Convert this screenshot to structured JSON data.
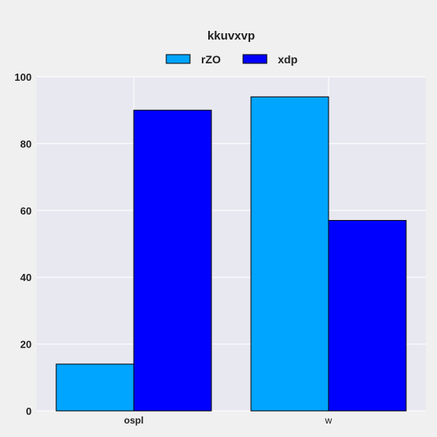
{
  "chart_data": {
    "type": "bar",
    "title": "kkuvxvp",
    "categories": [
      "ospl",
      "w"
    ],
    "series": [
      {
        "name": "rZO",
        "values": [
          14,
          94
        ]
      },
      {
        "name": "xdp",
        "values": [
          90,
          57
        ]
      }
    ],
    "ylim": [
      0,
      100
    ],
    "yticks": [
      "0",
      "20",
      "40",
      "60",
      "80",
      "100"
    ],
    "grid": true,
    "legend_position": "top-center"
  },
  "colors": {
    "series": [
      "#00a5ff",
      "#0000ff"
    ],
    "plot_background": "#e8e8f0",
    "grid": "#ffffff"
  }
}
